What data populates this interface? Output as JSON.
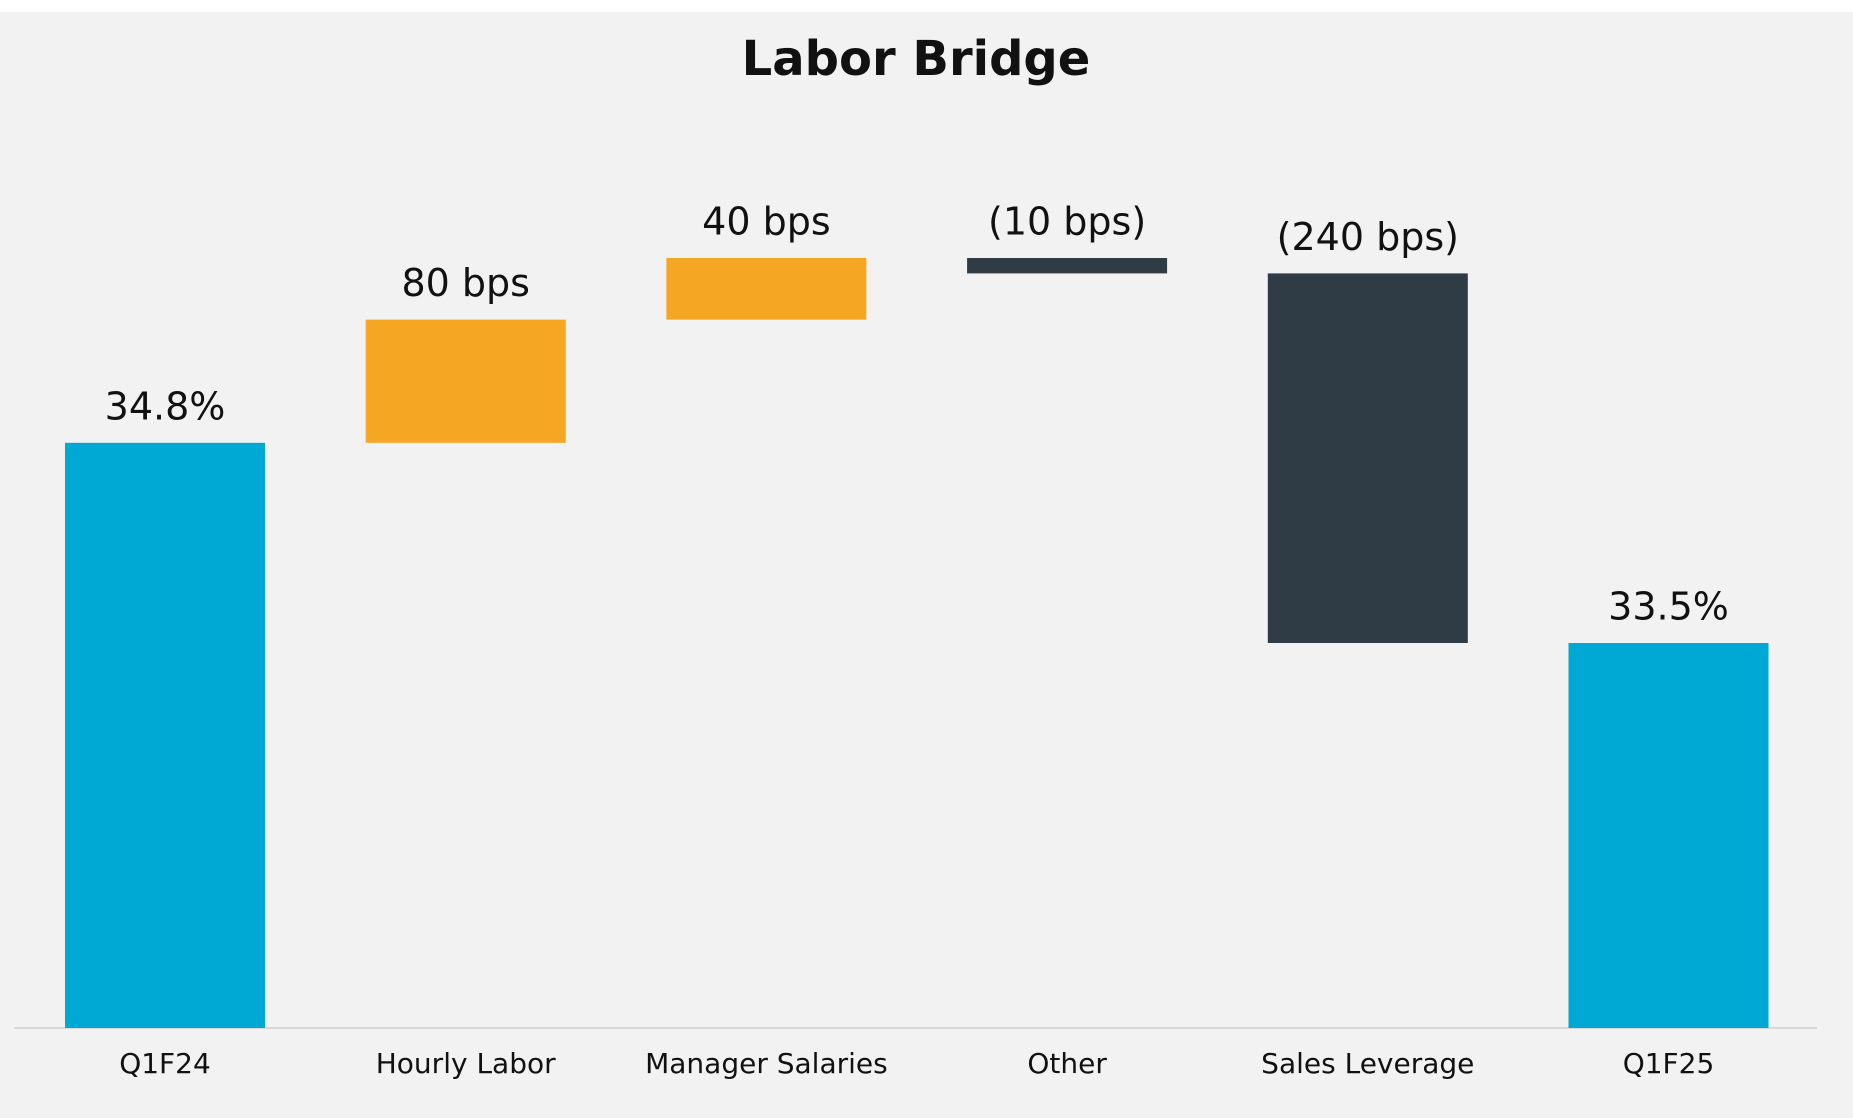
{
  "chart_data": {
    "type": "waterfall",
    "title": "Labor Bridge",
    "categories": [
      "Q1F24",
      "Hourly Labor",
      "Manager Salaries",
      "Other",
      "Sales Leverage",
      "Q1F25"
    ],
    "measure": [
      "absolute",
      "relative",
      "relative",
      "relative",
      "relative",
      "absolute"
    ],
    "values": [
      34.8,
      0.8,
      0.4,
      -0.1,
      -2.4,
      33.5
    ],
    "value_labels": [
      "34.8%",
      "80 bps",
      "40 bps",
      "(10 bps)",
      "(240 bps)",
      "33.5%"
    ],
    "colors": [
      "#00a9d4",
      "#f5a623",
      "#f5a623",
      "#2f3c45",
      "#2f3c45",
      "#00a9d4"
    ],
    "ylim": [
      31,
      36.5
    ]
  }
}
